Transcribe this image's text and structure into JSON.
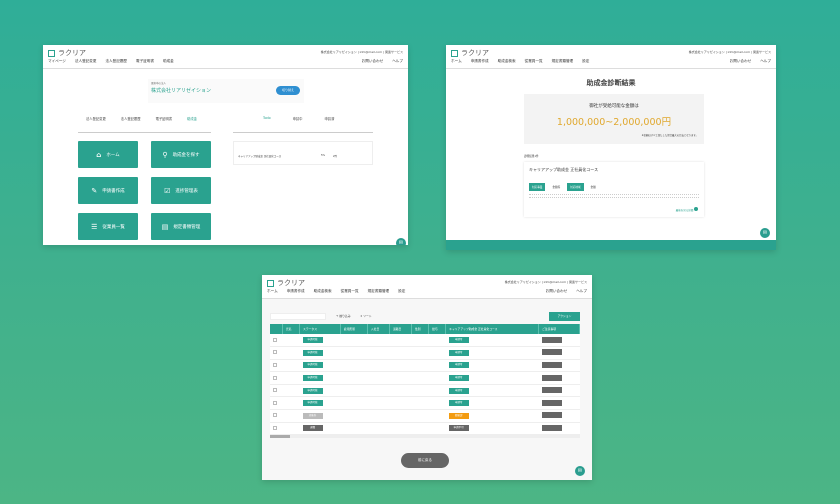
{
  "colors": {
    "accent": "#2aa28f",
    "amount": "#e0a82e",
    "warning": "#f39c12",
    "gray": "#666666"
  },
  "brand": "ラクリア",
  "company_line": "株式会社リアリゼイション | info@mail.com | 関連サービス",
  "w1": {
    "nav": [
      "マイページ",
      "法人登記変更",
      "法人登記履歴",
      "電子証明書",
      "助成金"
    ],
    "nav_right": [
      "お問い合わせ",
      "ヘルプ"
    ],
    "card_label": "選択中の法人",
    "card_name": "株式会社リアリゼイション",
    "card_button": "切り替え",
    "tabs_left": [
      "法人登記変更",
      "法人登記履歴",
      "電子証明書",
      "助成金"
    ],
    "tabs_right": [
      "Todo",
      "申請中",
      "申請済"
    ],
    "tiles": [
      {
        "label": "ホーム",
        "icon": "home-icon",
        "glyph": "⌂"
      },
      {
        "label": "助成金を探す",
        "icon": "search-icon",
        "glyph": "⚲"
      },
      {
        "label": "申請書作成",
        "icon": "pencil-icon",
        "glyph": "✎"
      },
      {
        "label": "進捗管理表",
        "icon": "clipboard-check-icon",
        "glyph": "☑"
      },
      {
        "label": "従業員一覧",
        "icon": "list-icon",
        "glyph": "☰"
      },
      {
        "label": "規定書類管理",
        "icon": "folder-icon",
        "glyph": "▤"
      }
    ],
    "todo_row": [
      "キャリアアップ助成金 正社員化コース",
      "5%",
      "2件"
    ]
  },
  "w2": {
    "nav": [
      "ホーム",
      "申請書作成",
      "助成金検索",
      "従業員一覧",
      "規定書類管理",
      "設定"
    ],
    "nav_right": [
      "お問い合わせ",
      "ヘルプ"
    ],
    "title": "助成金診断結果",
    "lead": "御社が受給可能な金額は",
    "amount": "1,000,000~2,000,000円",
    "note": "※金額はすべて満たした場合最大の目安となります。",
    "section_label": "診断結果1件",
    "course": "キャリアアップ助成金 正社員化コース",
    "tags": [
      "対応事業",
      "金額等",
      "対応地域",
      "金額"
    ],
    "more_link": "最後を見る詳細"
  },
  "w3": {
    "nav": [
      "ホーム",
      "申請書作成",
      "助成金検索",
      "従業員一覧",
      "規定書類管理",
      "設定"
    ],
    "nav_right": [
      "お問い合わせ",
      "ヘルプ"
    ],
    "filter": "絞り込み",
    "sort": "ソート",
    "action": "アクション",
    "columns": [
      "",
      "氏名",
      "ステータス",
      "雇用形態",
      "入社日",
      "退職日",
      "性別",
      "給与",
      "キャリアアップ助成金 正社員化コース",
      "ご注意事項"
    ],
    "rows": [
      {
        "status": "申請可能",
        "status_color": "#2aa28f",
        "c1": "申請可",
        "c1_color": "#2aa28f"
      },
      {
        "status": "申請可能",
        "status_color": "#2aa28f",
        "c1": "申請可",
        "c1_color": "#2aa28f"
      },
      {
        "status": "申請可能",
        "status_color": "#2aa28f",
        "c1": "申請可",
        "c1_color": "#2aa28f"
      },
      {
        "status": "申請可能",
        "status_color": "#2aa28f",
        "c1": "申請可",
        "c1_color": "#2aa28f"
      },
      {
        "status": "申請可能",
        "status_color": "#2aa28f",
        "c1": "申請可",
        "c1_color": "#2aa28f"
      },
      {
        "status": "申請可能",
        "status_color": "#2aa28f",
        "c1": "申請可",
        "c1_color": "#2aa28f"
      },
      {
        "status": "対象外",
        "status_color": "#bbbbbb",
        "c1": "要確認",
        "c1_color": "#f39c12"
      },
      {
        "status": "退職",
        "status_color": "#666666",
        "c1": "申請不可",
        "c1_color": "#666666"
      }
    ],
    "back_button": "前に戻る"
  }
}
